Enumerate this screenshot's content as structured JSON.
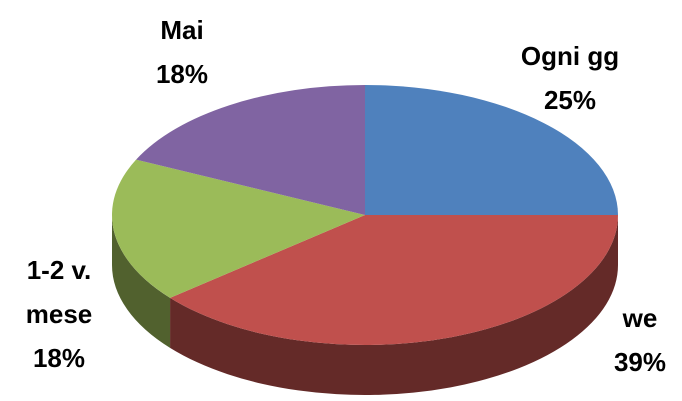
{
  "chart_data": {
    "type": "pie",
    "three_d": true,
    "categories": [
      "Ogni gg",
      "we",
      "1-2 v. mese",
      "Mai"
    ],
    "values": [
      25,
      39,
      18,
      18
    ],
    "value_labels": [
      "25%",
      "39%",
      "18%",
      "18%"
    ],
    "colors": [
      "#4f81bd",
      "#c0504d",
      "#9bbb59",
      "#8064a2"
    ]
  }
}
